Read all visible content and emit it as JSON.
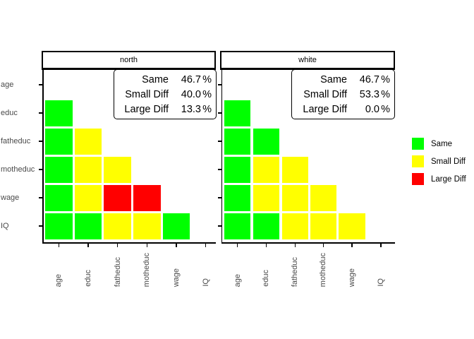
{
  "chart_data": {
    "type": "heatmap",
    "description": "Two faceted lower-triangular agreement heatmaps comparing variable pairs",
    "variables": [
      "age",
      "educ",
      "fatheduc",
      "motheduc",
      "wage",
      "IQ"
    ],
    "categories": [
      {
        "key": "same",
        "label": "Same",
        "color": "#00FF00"
      },
      {
        "key": "small",
        "label": "Small Diff",
        "color": "#FFFF00"
      },
      {
        "key": "large",
        "label": "Large Diff",
        "color": "#FF0000"
      }
    ],
    "legend_position": "right",
    "panels": [
      {
        "title": "north",
        "stats": [
          {
            "label": "Same",
            "value": "46.7",
            "unit": "%"
          },
          {
            "label": "Small Diff",
            "value": "40.0",
            "unit": "%"
          },
          {
            "label": "Large Diff",
            "value": "13.3",
            "unit": "%"
          }
        ],
        "cells": [
          {
            "row": "educ",
            "cols": [
              "same"
            ]
          },
          {
            "row": "fatheduc",
            "cols": [
              "same",
              "small"
            ]
          },
          {
            "row": "motheduc",
            "cols": [
              "same",
              "small",
              "small"
            ]
          },
          {
            "row": "wage",
            "cols": [
              "same",
              "small",
              "large",
              "large"
            ]
          },
          {
            "row": "IQ",
            "cols": [
              "same",
              "same",
              "small",
              "small",
              "same"
            ]
          }
        ]
      },
      {
        "title": "white",
        "stats": [
          {
            "label": "Same",
            "value": "46.7",
            "unit": "%"
          },
          {
            "label": "Small Diff",
            "value": "53.3",
            "unit": "%"
          },
          {
            "label": "Large Diff",
            "value": "0.0",
            "unit": "%"
          }
        ],
        "cells": [
          {
            "row": "educ",
            "cols": [
              "same"
            ]
          },
          {
            "row": "fatheduc",
            "cols": [
              "same",
              "same"
            ]
          },
          {
            "row": "motheduc",
            "cols": [
              "same",
              "small",
              "small"
            ]
          },
          {
            "row": "wage",
            "cols": [
              "same",
              "small",
              "small",
              "small"
            ]
          },
          {
            "row": "IQ",
            "cols": [
              "same",
              "same",
              "small",
              "small",
              "small"
            ]
          }
        ]
      }
    ]
  }
}
